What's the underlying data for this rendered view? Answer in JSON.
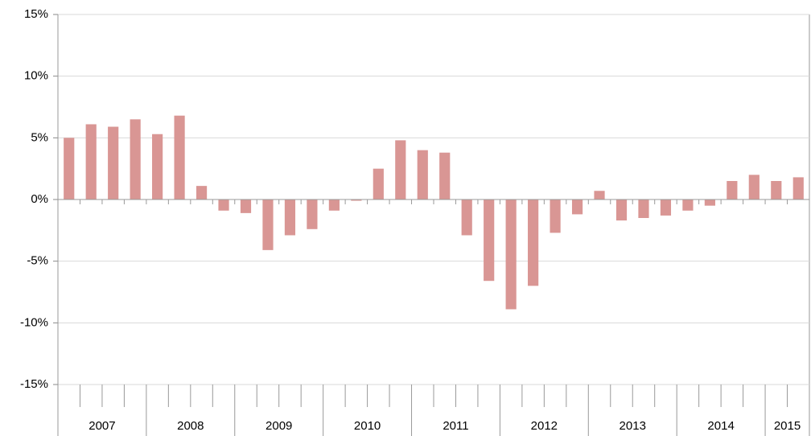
{
  "chart_data": {
    "type": "bar",
    "categories": [
      "2007",
      null,
      null,
      null,
      "2008",
      null,
      null,
      null,
      "2009",
      null,
      null,
      null,
      "2010",
      null,
      null,
      null,
      "2011",
      null,
      null,
      null,
      "2012",
      null,
      null,
      null,
      "2013",
      null,
      null,
      null,
      "2014",
      null,
      null,
      null,
      "2015",
      null
    ],
    "values": [
      5.0,
      6.1,
      5.9,
      6.5,
      5.3,
      6.8,
      1.1,
      -0.9,
      -1.1,
      -4.1,
      -2.9,
      -2.4,
      -0.9,
      -0.1,
      2.5,
      4.8,
      4.0,
      3.8,
      -2.9,
      -6.6,
      -8.9,
      -7.0,
      -2.7,
      -1.2,
      0.7,
      -1.7,
      -1.5,
      -1.3,
      -0.9,
      -0.5,
      1.5,
      2.0,
      1.5,
      1.8
    ],
    "color": "#d99694",
    "ylim": [
      -15,
      15
    ],
    "yticks": [
      {
        "value": -15,
        "label": "-15%"
      },
      {
        "value": -10,
        "label": "-10%"
      },
      {
        "value": -5,
        "label": "-5%"
      },
      {
        "value": 0,
        "label": "0%"
      },
      {
        "value": 5,
        "label": "5%"
      },
      {
        "value": 10,
        "label": "10%"
      },
      {
        "value": 15,
        "label": "15%"
      }
    ],
    "grid": true
  }
}
